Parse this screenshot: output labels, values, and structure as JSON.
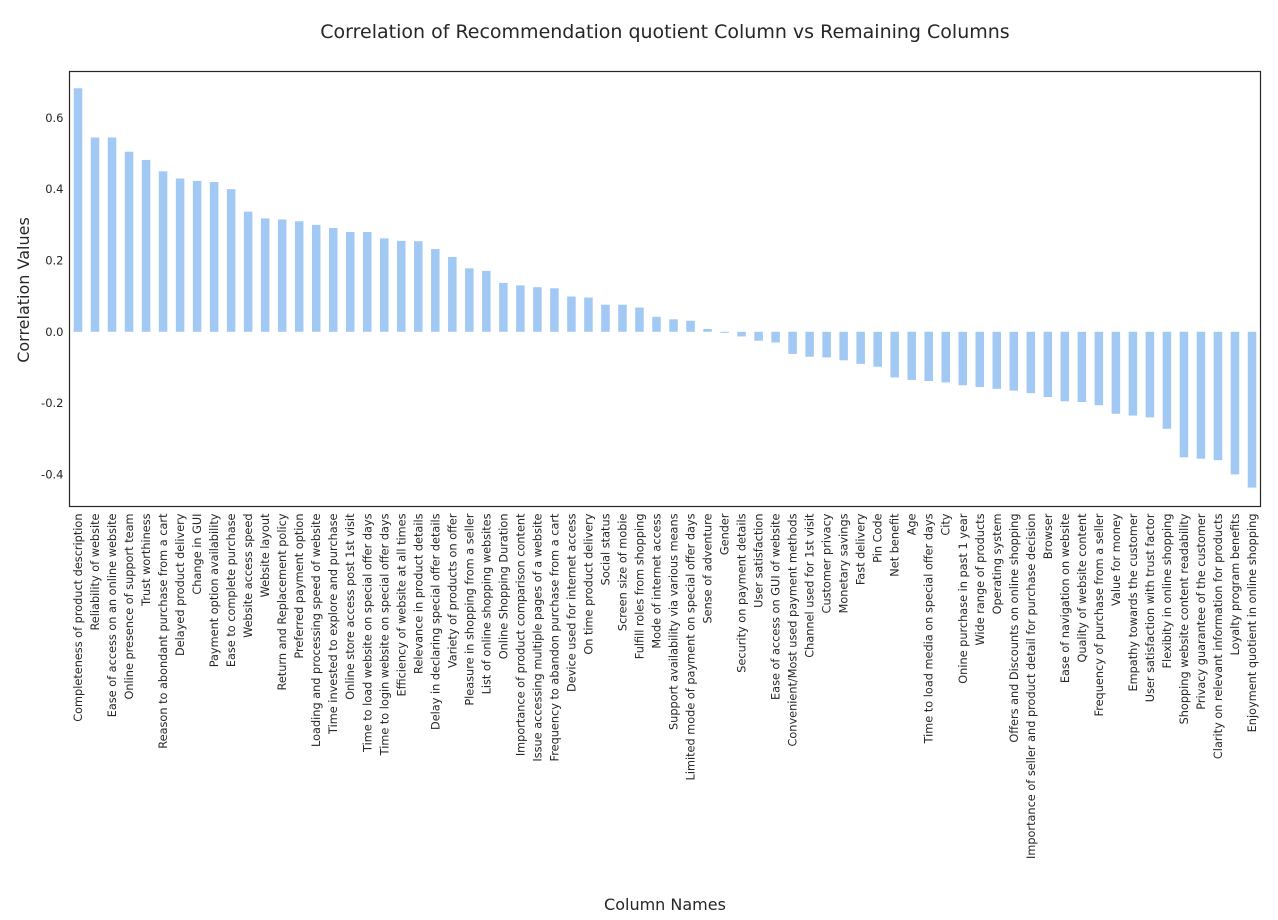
{
  "chart_data": {
    "type": "bar",
    "title": "Correlation of Recommendation quotient Column vs Remaining Columns",
    "xlabel": "Column Names",
    "ylabel": "Correlation Values",
    "ylim": [
      -0.49,
      0.73
    ],
    "yticks": [
      -0.4,
      -0.2,
      0.0,
      0.2,
      0.4,
      0.6
    ],
    "ytick_labels": [
      "-0.4",
      "-0.2",
      "0.0",
      "0.2",
      "0.4",
      "0.6"
    ],
    "bar_color": "#a1c9f4",
    "grid": false,
    "categories": [
      "Completeness of product description",
      "Reliability of website",
      "Ease of access on an online website",
      "Online presence of support team",
      "Trust worthiness",
      "Reason to abondant purchase from a cart",
      "Delayed product delivery",
      "Change in GUI",
      "Payment option availability",
      "Ease to complete purchase",
      "Website access speed",
      "Website layout",
      "Return and Replacement policy",
      "Preferred payment option",
      "Loading and processing speed of website",
      "Time invested to explore and purchase",
      "Online store access post 1st visit",
      "Time to load website on special offer days",
      "Time to login website on special offer days",
      "Efficiency of website at all times",
      "Relevance in product details",
      "Delay in declaring special offer details",
      "Variety of products on offer",
      "Pleasure in shopping from a seller",
      "List of online shopping websites",
      "Online Shopping Duration",
      "Importance of product comparison content",
      "Issue accessing multiple pages of a website",
      "Frequency to abandon purchase from a cart",
      "Device used for internet access",
      "On time product delivery",
      "Social status",
      "Screen size of mobie",
      "Fulfill roles from shopping",
      "Mode of internet access",
      "Support availability via various means",
      "Limited mode of payment on special offer days",
      "Sense of adventure",
      "Gender",
      "Security on payment details",
      "User satisfaction",
      "Ease of access on GUI of website",
      "Convenient/Most used payment methods",
      "Channel used for 1st visit",
      "Customer privacy",
      "Monetary savings",
      "Fast delivery",
      "Pin Code",
      "Net benefit",
      "Age",
      "Time to load media on special offer days",
      "City",
      "Onine purchase in past 1 year",
      "Wide range of products",
      "Operating system",
      "Offers and Discounts on online shopping",
      "Importance of seller and product detail for purchase decision",
      "Browser",
      "Ease of navigation on website",
      "Quality of website content",
      "Frequency of purchase from a seller",
      "Value for money",
      "Empathy towards the customer",
      "User satisfaction with trust factor",
      "Flexibity in online shopping",
      "Shopping website content readability",
      "Privacy guarantee of the customer",
      "Clarity on relevant information for products",
      "Loyalty program benefits",
      "Enjoyment quotient in online shopping"
    ],
    "values": [
      0.683,
      0.545,
      0.545,
      0.505,
      0.482,
      0.45,
      0.43,
      0.423,
      0.42,
      0.4,
      0.337,
      0.318,
      0.315,
      0.31,
      0.3,
      0.291,
      0.28,
      0.28,
      0.262,
      0.255,
      0.254,
      0.232,
      0.21,
      0.178,
      0.171,
      0.137,
      0.13,
      0.125,
      0.122,
      0.099,
      0.096,
      0.076,
      0.076,
      0.068,
      0.042,
      0.035,
      0.031,
      0.008,
      -0.003,
      -0.013,
      -0.025,
      -0.03,
      -0.062,
      -0.07,
      -0.072,
      -0.08,
      -0.09,
      -0.098,
      -0.128,
      -0.135,
      -0.138,
      -0.142,
      -0.15,
      -0.155,
      -0.16,
      -0.165,
      -0.172,
      -0.183,
      -0.195,
      -0.197,
      -0.206,
      -0.23,
      -0.235,
      -0.24,
      -0.272,
      -0.352,
      -0.356,
      -0.36,
      -0.4,
      -0.437
    ]
  }
}
